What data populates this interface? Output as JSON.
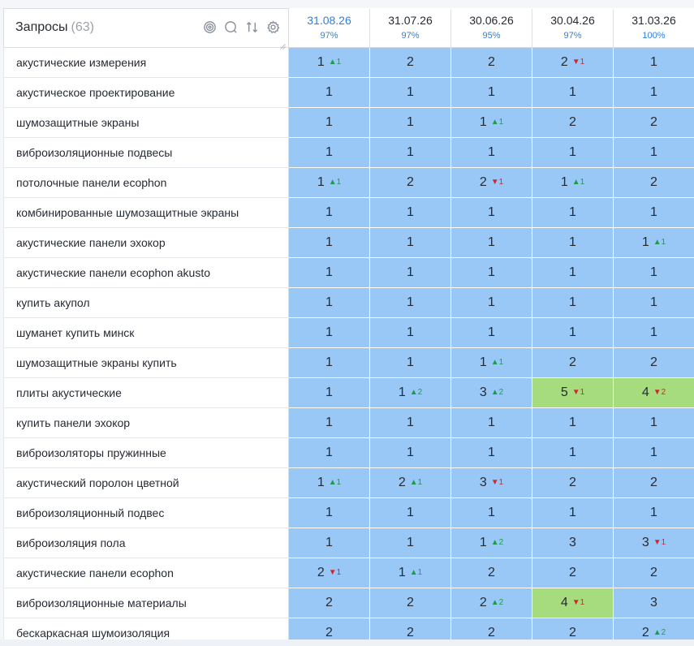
{
  "header": {
    "queries_label": "Запросы",
    "queries_count": "(63)",
    "tools": [
      "target-icon",
      "search-icon",
      "sort-icon",
      "settings-icon"
    ]
  },
  "dates": [
    {
      "date": "31.08.26",
      "pct": "97%",
      "active": true
    },
    {
      "date": "31.07.26",
      "pct": "97%",
      "active": false
    },
    {
      "date": "30.06.26",
      "pct": "95%",
      "active": false
    },
    {
      "date": "30.04.26",
      "pct": "97%",
      "active": false
    },
    {
      "date": "31.03.26",
      "pct": "100%",
      "active": false
    }
  ],
  "colors": {
    "blue_cell": "#99c8f7",
    "green_cell": "#a6dc7d",
    "delta_up": "#1b9e4b",
    "delta_down": "#d3262d",
    "accent": "#2f7fe0"
  },
  "rows": [
    {
      "q": "акустические измерения",
      "c": [
        {
          "v": "1",
          "d": "▲1",
          "t": "up"
        },
        {
          "v": "2"
        },
        {
          "v": "2"
        },
        {
          "v": "2",
          "d": "▼1",
          "t": "down"
        },
        {
          "v": "1"
        }
      ]
    },
    {
      "q": "акустическое проектирование",
      "c": [
        {
          "v": "1"
        },
        {
          "v": "1"
        },
        {
          "v": "1"
        },
        {
          "v": "1"
        },
        {
          "v": "1"
        }
      ]
    },
    {
      "q": "шумозащитные экраны",
      "c": [
        {
          "v": "1"
        },
        {
          "v": "1"
        },
        {
          "v": "1",
          "d": "▲1",
          "t": "up"
        },
        {
          "v": "2"
        },
        {
          "v": "2"
        }
      ]
    },
    {
      "q": "виброизоляционные подвесы",
      "c": [
        {
          "v": "1"
        },
        {
          "v": "1"
        },
        {
          "v": "1"
        },
        {
          "v": "1"
        },
        {
          "v": "1"
        }
      ]
    },
    {
      "q": "потолочные панели ecophon",
      "c": [
        {
          "v": "1",
          "d": "▲1",
          "t": "up"
        },
        {
          "v": "2"
        },
        {
          "v": "2",
          "d": "▼1",
          "t": "down"
        },
        {
          "v": "1",
          "d": "▲1",
          "t": "up"
        },
        {
          "v": "2"
        }
      ]
    },
    {
      "q": "комбинированные шумозащитные экраны",
      "c": [
        {
          "v": "1"
        },
        {
          "v": "1"
        },
        {
          "v": "1"
        },
        {
          "v": "1"
        },
        {
          "v": "1"
        }
      ]
    },
    {
      "q": "акустические панели эхокор",
      "c": [
        {
          "v": "1"
        },
        {
          "v": "1"
        },
        {
          "v": "1"
        },
        {
          "v": "1"
        },
        {
          "v": "1",
          "d": "▲1",
          "t": "up"
        }
      ]
    },
    {
      "q": "акустические панели ecophon akusto",
      "c": [
        {
          "v": "1"
        },
        {
          "v": "1"
        },
        {
          "v": "1"
        },
        {
          "v": "1"
        },
        {
          "v": "1"
        }
      ]
    },
    {
      "q": "купить акупол",
      "c": [
        {
          "v": "1"
        },
        {
          "v": "1"
        },
        {
          "v": "1"
        },
        {
          "v": "1"
        },
        {
          "v": "1"
        }
      ]
    },
    {
      "q": "шуманет купить минск",
      "c": [
        {
          "v": "1"
        },
        {
          "v": "1"
        },
        {
          "v": "1"
        },
        {
          "v": "1"
        },
        {
          "v": "1"
        }
      ]
    },
    {
      "q": "шумозащитные экраны купить",
      "c": [
        {
          "v": "1"
        },
        {
          "v": "1"
        },
        {
          "v": "1",
          "d": "▲1",
          "t": "up"
        },
        {
          "v": "2"
        },
        {
          "v": "2"
        }
      ]
    },
    {
      "q": "плиты акустические",
      "c": [
        {
          "v": "1"
        },
        {
          "v": "1",
          "d": "▲2",
          "t": "up"
        },
        {
          "v": "3",
          "d": "▲2",
          "t": "up"
        },
        {
          "v": "5",
          "d": "▼1",
          "t": "down",
          "g": true
        },
        {
          "v": "4",
          "d": "▼2",
          "t": "down",
          "g": true
        }
      ]
    },
    {
      "q": "купить панели эхокор",
      "c": [
        {
          "v": "1"
        },
        {
          "v": "1"
        },
        {
          "v": "1"
        },
        {
          "v": "1"
        },
        {
          "v": "1"
        }
      ]
    },
    {
      "q": "виброизоляторы пружинные",
      "c": [
        {
          "v": "1"
        },
        {
          "v": "1"
        },
        {
          "v": "1"
        },
        {
          "v": "1"
        },
        {
          "v": "1"
        }
      ]
    },
    {
      "q": "акустический поролон цветной",
      "c": [
        {
          "v": "1",
          "d": "▲1",
          "t": "up"
        },
        {
          "v": "2",
          "d": "▲1",
          "t": "up"
        },
        {
          "v": "3",
          "d": "▼1",
          "t": "down"
        },
        {
          "v": "2"
        },
        {
          "v": "2"
        }
      ]
    },
    {
      "q": "виброизоляционный подвес",
      "c": [
        {
          "v": "1"
        },
        {
          "v": "1"
        },
        {
          "v": "1"
        },
        {
          "v": "1"
        },
        {
          "v": "1"
        }
      ]
    },
    {
      "q": "виброизоляция пола",
      "c": [
        {
          "v": "1"
        },
        {
          "v": "1"
        },
        {
          "v": "1",
          "d": "▲2",
          "t": "up"
        },
        {
          "v": "3"
        },
        {
          "v": "3",
          "d": "▼1",
          "t": "down"
        }
      ]
    },
    {
      "q": "акустические панели ecophon",
      "c": [
        {
          "v": "2",
          "d": "▼1",
          "t": "down"
        },
        {
          "v": "1",
          "d": "▲1",
          "t": "up"
        },
        {
          "v": "2"
        },
        {
          "v": "2"
        },
        {
          "v": "2"
        }
      ]
    },
    {
      "q": "виброизоляционные материалы",
      "c": [
        {
          "v": "2"
        },
        {
          "v": "2"
        },
        {
          "v": "2",
          "d": "▲2",
          "t": "up"
        },
        {
          "v": "4",
          "d": "▼1",
          "t": "down",
          "g": true
        },
        {
          "v": "3"
        }
      ]
    },
    {
      "q": "бескаркасная шумоизоляция",
      "c": [
        {
          "v": "2"
        },
        {
          "v": "2"
        },
        {
          "v": "2"
        },
        {
          "v": "2"
        },
        {
          "v": "2",
          "d": "▲2",
          "t": "up"
        }
      ]
    }
  ]
}
